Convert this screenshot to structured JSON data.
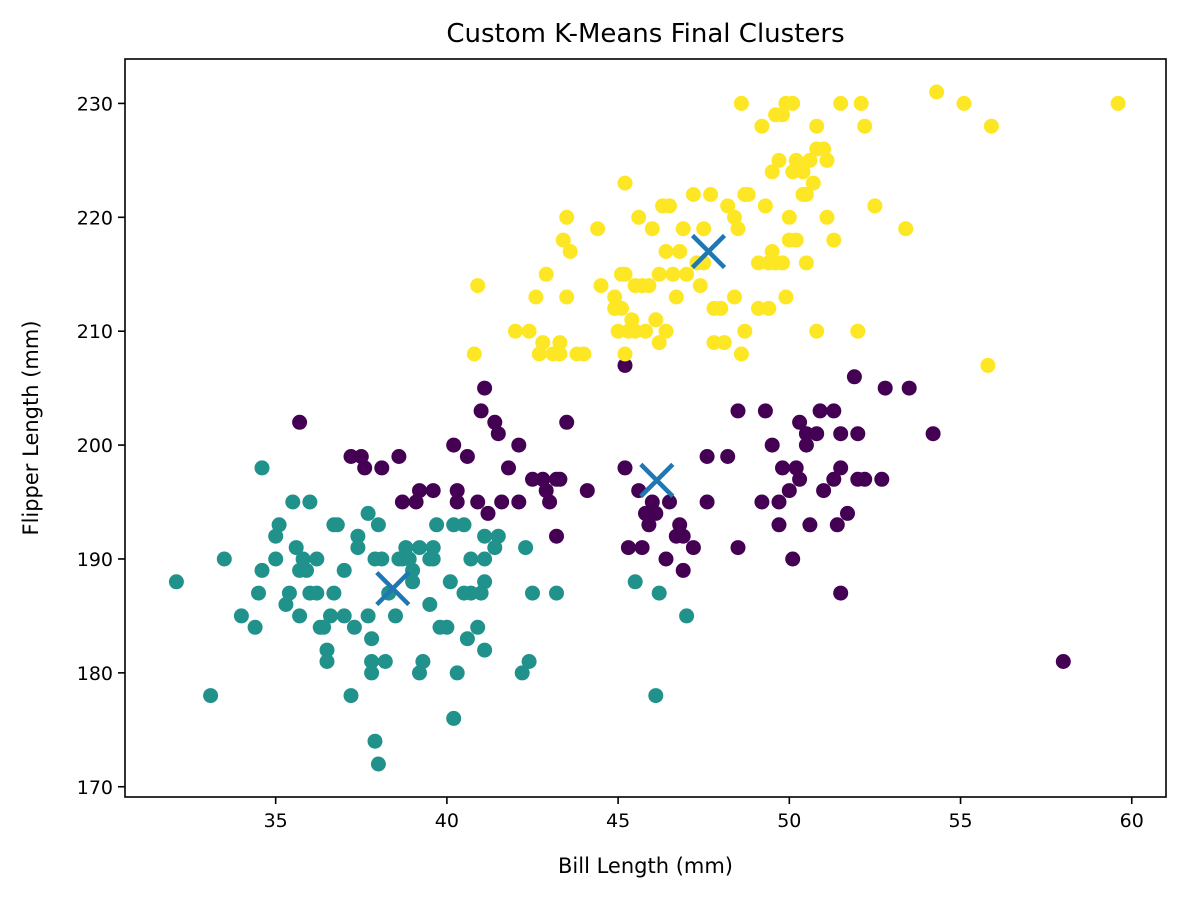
{
  "chart_data": {
    "type": "scatter",
    "title": "Custom K-Means Final Clusters",
    "xlabel": "Bill Length (mm)",
    "ylabel": "Flipper Length (mm)",
    "xlim": [
      30.6,
      61.0
    ],
    "ylim": [
      169.1,
      233.9
    ],
    "xticks": [
      35,
      40,
      45,
      50,
      55,
      60
    ],
    "yticks": [
      170,
      180,
      190,
      200,
      210,
      220,
      230
    ],
    "xtick_labels": [
      "35",
      "40",
      "45",
      "50",
      "55",
      "60"
    ],
    "ytick_labels": [
      "170",
      "180",
      "190",
      "200",
      "210",
      "220",
      "230"
    ],
    "grid": false,
    "legend": "none",
    "series": [
      {
        "color": "#21918c",
        "points": [
          [
            32.1,
            188
          ],
          [
            33.1,
            178
          ],
          [
            33.5,
            190
          ],
          [
            34.0,
            185
          ],
          [
            34.4,
            184
          ],
          [
            34.5,
            187
          ],
          [
            34.6,
            198
          ],
          [
            34.6,
            189
          ],
          [
            35.0,
            190
          ],
          [
            35.0,
            192
          ],
          [
            35.1,
            193
          ],
          [
            35.3,
            186
          ],
          [
            35.4,
            187
          ],
          [
            35.5,
            195
          ],
          [
            35.6,
            191
          ],
          [
            35.7,
            185
          ],
          [
            35.7,
            189
          ],
          [
            35.8,
            190
          ],
          [
            35.9,
            189
          ],
          [
            36.0,
            195
          ],
          [
            36.0,
            187
          ],
          [
            36.2,
            187
          ],
          [
            36.2,
            190
          ],
          [
            36.3,
            184
          ],
          [
            36.4,
            184
          ],
          [
            36.5,
            182
          ],
          [
            36.5,
            181
          ],
          [
            36.6,
            185
          ],
          [
            36.7,
            193
          ],
          [
            36.7,
            187
          ],
          [
            36.8,
            193
          ],
          [
            37.0,
            189
          ],
          [
            37.0,
            185
          ],
          [
            37.3,
            184
          ],
          [
            37.2,
            178
          ],
          [
            37.4,
            192
          ],
          [
            37.4,
            191
          ],
          [
            37.7,
            185
          ],
          [
            37.7,
            194
          ],
          [
            37.8,
            181
          ],
          [
            37.8,
            180
          ],
          [
            37.8,
            183
          ],
          [
            37.9,
            190
          ],
          [
            37.9,
            174
          ],
          [
            38.0,
            193
          ],
          [
            38.0,
            172
          ],
          [
            38.1,
            190
          ],
          [
            38.2,
            181
          ],
          [
            38.3,
            187
          ],
          [
            38.5,
            185
          ],
          [
            38.6,
            190
          ],
          [
            38.7,
            190
          ],
          [
            38.8,
            191
          ],
          [
            38.9,
            190
          ],
          [
            39.0,
            188
          ],
          [
            39.0,
            189
          ],
          [
            39.2,
            191
          ],
          [
            39.2,
            180
          ],
          [
            39.3,
            181
          ],
          [
            39.5,
            190
          ],
          [
            39.5,
            186
          ],
          [
            39.6,
            191
          ],
          [
            39.6,
            190
          ],
          [
            39.7,
            193
          ],
          [
            39.8,
            184
          ],
          [
            40.0,
            184
          ],
          [
            40.1,
            188
          ],
          [
            40.2,
            193
          ],
          [
            40.2,
            176
          ],
          [
            40.5,
            193
          ],
          [
            40.5,
            187
          ],
          [
            40.6,
            183
          ],
          [
            40.7,
            187
          ],
          [
            40.7,
            190
          ],
          [
            40.9,
            184
          ],
          [
            41.0,
            187
          ],
          [
            41.1,
            188
          ],
          [
            41.1,
            190
          ],
          [
            41.1,
            192
          ],
          [
            41.1,
            182
          ],
          [
            41.4,
            191
          ],
          [
            41.5,
            192
          ],
          [
            42.2,
            180
          ],
          [
            42.3,
            191
          ],
          [
            42.4,
            181
          ],
          [
            42.5,
            187
          ],
          [
            43.2,
            187
          ],
          [
            45.5,
            188
          ],
          [
            46.1,
            178
          ],
          [
            46.2,
            187
          ],
          [
            47.0,
            185
          ],
          [
            40.3,
            180
          ]
        ]
      },
      {
        "color": "#440154",
        "points": [
          [
            35.7,
            202
          ],
          [
            37.2,
            199
          ],
          [
            37.5,
            199
          ],
          [
            37.6,
            198
          ],
          [
            38.1,
            198
          ],
          [
            38.6,
            199
          ],
          [
            38.7,
            195
          ],
          [
            39.1,
            195
          ],
          [
            39.2,
            196
          ],
          [
            39.6,
            196
          ],
          [
            40.2,
            200
          ],
          [
            40.3,
            196
          ],
          [
            40.3,
            195
          ],
          [
            40.6,
            199
          ],
          [
            40.9,
            195
          ],
          [
            41.0,
            203
          ],
          [
            41.1,
            205
          ],
          [
            41.2,
            194
          ],
          [
            41.4,
            202
          ],
          [
            41.5,
            201
          ],
          [
            41.6,
            195
          ],
          [
            41.8,
            198
          ],
          [
            42.1,
            200
          ],
          [
            42.1,
            195
          ],
          [
            42.5,
            197
          ],
          [
            42.8,
            197
          ],
          [
            42.9,
            196
          ],
          [
            43.0,
            195
          ],
          [
            43.2,
            197
          ],
          [
            43.3,
            197
          ],
          [
            43.2,
            192
          ],
          [
            43.5,
            202
          ],
          [
            44.1,
            196
          ],
          [
            45.2,
            207
          ],
          [
            45.2,
            198
          ],
          [
            45.3,
            191
          ],
          [
            45.6,
            196
          ],
          [
            45.7,
            191
          ],
          [
            45.8,
            194
          ],
          [
            45.9,
            193
          ],
          [
            46.0,
            195
          ],
          [
            46.1,
            194
          ],
          [
            46.4,
            190
          ],
          [
            46.5,
            195
          ],
          [
            46.7,
            192
          ],
          [
            46.8,
            193
          ],
          [
            46.9,
            192
          ],
          [
            46.9,
            189
          ],
          [
            47.2,
            191
          ],
          [
            47.6,
            199
          ],
          [
            47.6,
            195
          ],
          [
            48.2,
            199
          ],
          [
            48.5,
            203
          ],
          [
            48.5,
            191
          ],
          [
            49.2,
            195
          ],
          [
            49.3,
            203
          ],
          [
            49.5,
            200
          ],
          [
            49.7,
            195
          ],
          [
            49.7,
            193
          ],
          [
            49.8,
            198
          ],
          [
            50.0,
            196
          ],
          [
            50.1,
            190
          ],
          [
            50.2,
            198
          ],
          [
            50.3,
            197
          ],
          [
            50.3,
            202
          ],
          [
            50.5,
            201
          ],
          [
            50.5,
            200
          ],
          [
            50.6,
            193
          ],
          [
            50.8,
            201
          ],
          [
            50.9,
            203
          ],
          [
            51.0,
            196
          ],
          [
            51.3,
            197
          ],
          [
            51.3,
            203
          ],
          [
            51.4,
            193
          ],
          [
            51.5,
            198
          ],
          [
            51.5,
            201
          ],
          [
            51.7,
            194
          ],
          [
            51.9,
            206
          ],
          [
            52.0,
            201
          ],
          [
            52.0,
            197
          ],
          [
            51.5,
            187
          ],
          [
            52.2,
            197
          ],
          [
            52.7,
            197
          ],
          [
            52.8,
            205
          ],
          [
            53.5,
            205
          ],
          [
            54.2,
            201
          ],
          [
            58.0,
            181
          ]
        ]
      },
      {
        "color": "#fde725",
        "points": [
          [
            40.8,
            208
          ],
          [
            40.9,
            214
          ],
          [
            42.0,
            210
          ],
          [
            42.4,
            210
          ],
          [
            42.6,
            213
          ],
          [
            42.7,
            208
          ],
          [
            42.8,
            209
          ],
          [
            42.9,
            215
          ],
          [
            43.1,
            208
          ],
          [
            43.3,
            209
          ],
          [
            43.3,
            208
          ],
          [
            43.4,
            218
          ],
          [
            43.5,
            220
          ],
          [
            43.5,
            213
          ],
          [
            43.6,
            217
          ],
          [
            43.8,
            208
          ],
          [
            44.0,
            208
          ],
          [
            44.4,
            219
          ],
          [
            44.5,
            214
          ],
          [
            44.9,
            213
          ],
          [
            44.9,
            212
          ],
          [
            45.0,
            210
          ],
          [
            45.1,
            215
          ],
          [
            45.1,
            212
          ],
          [
            45.2,
            223
          ],
          [
            45.2,
            215
          ],
          [
            45.2,
            208
          ],
          [
            45.3,
            210
          ],
          [
            45.4,
            211
          ],
          [
            45.5,
            214
          ],
          [
            45.5,
            210
          ],
          [
            45.6,
            220
          ],
          [
            45.7,
            214
          ],
          [
            45.8,
            210
          ],
          [
            45.9,
            214
          ],
          [
            46.0,
            219
          ],
          [
            46.1,
            211
          ],
          [
            46.2,
            215
          ],
          [
            46.2,
            209
          ],
          [
            46.3,
            221
          ],
          [
            46.4,
            217
          ],
          [
            46.4,
            210
          ],
          [
            46.5,
            221
          ],
          [
            46.6,
            215
          ],
          [
            46.7,
            213
          ],
          [
            46.8,
            217
          ],
          [
            46.9,
            219
          ],
          [
            47.0,
            215
          ],
          [
            47.2,
            222
          ],
          [
            47.3,
            216
          ],
          [
            47.4,
            214
          ],
          [
            47.5,
            216
          ],
          [
            47.5,
            219
          ],
          [
            47.7,
            222
          ],
          [
            47.8,
            212
          ],
          [
            47.8,
            209
          ],
          [
            48.0,
            212
          ],
          [
            48.1,
            209
          ],
          [
            48.2,
            221
          ],
          [
            48.4,
            213
          ],
          [
            48.4,
            220
          ],
          [
            48.5,
            219
          ],
          [
            48.6,
            208
          ],
          [
            48.6,
            230
          ],
          [
            48.7,
            222
          ],
          [
            48.8,
            222
          ],
          [
            48.7,
            210
          ],
          [
            49.1,
            216
          ],
          [
            49.1,
            212
          ],
          [
            49.2,
            228
          ],
          [
            49.3,
            221
          ],
          [
            49.4,
            212
          ],
          [
            49.4,
            216
          ],
          [
            49.5,
            217
          ],
          [
            49.5,
            224
          ],
          [
            49.6,
            216
          ],
          [
            49.6,
            229
          ],
          [
            49.7,
            225
          ],
          [
            49.8,
            229
          ],
          [
            49.8,
            216
          ],
          [
            49.9,
            213
          ],
          [
            49.9,
            230
          ],
          [
            50.0,
            218
          ],
          [
            50.0,
            220
          ],
          [
            50.1,
            230
          ],
          [
            50.1,
            224
          ],
          [
            50.2,
            225
          ],
          [
            50.2,
            218
          ],
          [
            50.4,
            222
          ],
          [
            50.4,
            224
          ],
          [
            50.5,
            216
          ],
          [
            50.5,
            222
          ],
          [
            50.6,
            225
          ],
          [
            50.7,
            223
          ],
          [
            50.8,
            210
          ],
          [
            50.8,
            226
          ],
          [
            50.8,
            228
          ],
          [
            51.0,
            226
          ],
          [
            51.1,
            225
          ],
          [
            51.1,
            220
          ],
          [
            51.3,
            218
          ],
          [
            51.5,
            230
          ],
          [
            52.1,
            230
          ],
          [
            52.2,
            228
          ],
          [
            52.5,
            221
          ],
          [
            53.4,
            219
          ],
          [
            54.3,
            231
          ],
          [
            55.1,
            230
          ],
          [
            55.8,
            207
          ],
          [
            55.9,
            228
          ],
          [
            59.6,
            230
          ],
          [
            52.0,
            210
          ]
        ]
      }
    ],
    "centroids": {
      "color": "#1f77b4",
      "points": [
        [
          38.42,
          187.4
        ],
        [
          46.13,
          196.9
        ],
        [
          47.64,
          217.0
        ]
      ]
    }
  }
}
